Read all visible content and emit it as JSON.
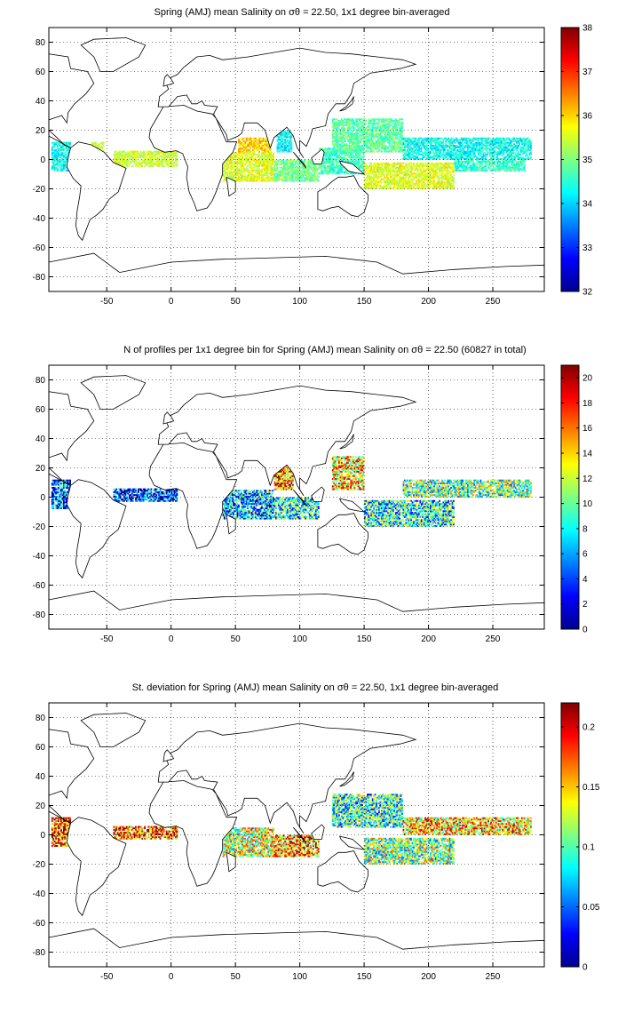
{
  "chart_data": [
    {
      "type": "heatmap",
      "title": "Spring (AMJ) mean Salinity on σθ = 22.50, 1x1 degree bin-averaged",
      "xlim": [
        -95,
        290
      ],
      "ylim": [
        -90,
        90
      ],
      "xticks": [
        -50,
        0,
        50,
        100,
        150,
        200,
        250
      ],
      "yticks": [
        -80,
        -60,
        -40,
        -20,
        0,
        20,
        40,
        60,
        80
      ],
      "grid": true,
      "colorbar": {
        "range": [
          32,
          38
        ],
        "ticks": [
          "32",
          "33",
          "34",
          "35",
          "36",
          "37",
          "38"
        ],
        "colormap": "jet"
      },
      "regions": [
        {
          "x": [
            -93,
            -78
          ],
          "y": [
            -8,
            12
          ],
          "value": 34.3
        },
        {
          "x": [
            -62,
            -52
          ],
          "y": [
            5,
            12
          ],
          "value": 35.6
        },
        {
          "x": [
            -45,
            5
          ],
          "y": [
            -5,
            6
          ],
          "value": 35.5
        },
        {
          "x": [
            40,
            80
          ],
          "y": [
            -15,
            5
          ],
          "value": 35.6
        },
        {
          "x": [
            52,
            78
          ],
          "y": [
            5,
            15
          ],
          "value": 36.0
        },
        {
          "x": [
            82,
            94
          ],
          "y": [
            5,
            20
          ],
          "value": 34.2
        },
        {
          "x": [
            80,
            115
          ],
          "y": [
            -15,
            0
          ],
          "value": 34.9
        },
        {
          "x": [
            115,
            150
          ],
          "y": [
            -10,
            8
          ],
          "value": 34.6
        },
        {
          "x": [
            125,
            180
          ],
          "y": [
            5,
            28
          ],
          "value": 34.8
        },
        {
          "x": [
            150,
            220
          ],
          "y": [
            -20,
            -2
          ],
          "value": 35.6
        },
        {
          "x": [
            180,
            280
          ],
          "y": [
            0,
            15
          ],
          "value": 34.3
        },
        {
          "x": [
            220,
            275
          ],
          "y": [
            -8,
            0
          ],
          "value": 34.5
        }
      ]
    },
    {
      "type": "heatmap",
      "title": "N of profiles per 1x1 degree bin for Spring (AMJ) mean Salinity on σθ = 22.50 (60827 in total)",
      "xlim": [
        -95,
        290
      ],
      "ylim": [
        -90,
        90
      ],
      "xticks": [
        -50,
        0,
        50,
        100,
        150,
        200,
        250
      ],
      "yticks": [
        -80,
        -60,
        -40,
        -20,
        0,
        20,
        40,
        60,
        80
      ],
      "grid": true,
      "colorbar": {
        "range": [
          0,
          21
        ],
        "ticks": [
          "0",
          "2",
          "4",
          "6",
          "8",
          "10",
          "12",
          "14",
          "16",
          "18",
          "20"
        ],
        "colormap": "jet"
      },
      "regions": [
        {
          "x": [
            -93,
            -78
          ],
          "y": [
            -8,
            12
          ],
          "value": 4
        },
        {
          "x": [
            -45,
            5
          ],
          "y": [
            -3,
            6
          ],
          "value": 3
        },
        {
          "x": [
            40,
            80
          ],
          "y": [
            -15,
            5
          ],
          "value": 6
        },
        {
          "x": [
            80,
            95
          ],
          "y": [
            5,
            22
          ],
          "value": 16
        },
        {
          "x": [
            80,
            115
          ],
          "y": [
            -15,
            0
          ],
          "value": 8
        },
        {
          "x": [
            125,
            150
          ],
          "y": [
            5,
            28
          ],
          "value": 14
        },
        {
          "x": [
            150,
            220
          ],
          "y": [
            -20,
            -2
          ],
          "value": 8
        },
        {
          "x": [
            180,
            280
          ],
          "y": [
            0,
            12
          ],
          "value": 10
        }
      ]
    },
    {
      "type": "heatmap",
      "title": "St. deviation for Spring (AMJ) mean Salinity on σθ = 22.50, 1x1 degree bin-averaged",
      "xlim": [
        -95,
        290
      ],
      "ylim": [
        -90,
        90
      ],
      "xticks": [
        -50,
        0,
        50,
        100,
        150,
        200,
        250
      ],
      "yticks": [
        -80,
        -60,
        -40,
        -20,
        0,
        20,
        40,
        60,
        80
      ],
      "grid": true,
      "colorbar": {
        "range": [
          0,
          0.22
        ],
        "ticks": [
          "0",
          "0.05",
          "0.1",
          "0.15",
          "0.2"
        ],
        "colormap": "jet"
      },
      "regions": [
        {
          "x": [
            -93,
            -78
          ],
          "y": [
            -8,
            12
          ],
          "value": 0.18
        },
        {
          "x": [
            -45,
            5
          ],
          "y": [
            -3,
            6
          ],
          "value": 0.17
        },
        {
          "x": [
            40,
            80
          ],
          "y": [
            -15,
            5
          ],
          "value": 0.13
        },
        {
          "x": [
            80,
            115
          ],
          "y": [
            -15,
            0
          ],
          "value": 0.16
        },
        {
          "x": [
            125,
            180
          ],
          "y": [
            5,
            28
          ],
          "value": 0.09
        },
        {
          "x": [
            150,
            220
          ],
          "y": [
            -20,
            -2
          ],
          "value": 0.11
        },
        {
          "x": [
            180,
            280
          ],
          "y": [
            0,
            12
          ],
          "value": 0.15
        }
      ]
    }
  ]
}
